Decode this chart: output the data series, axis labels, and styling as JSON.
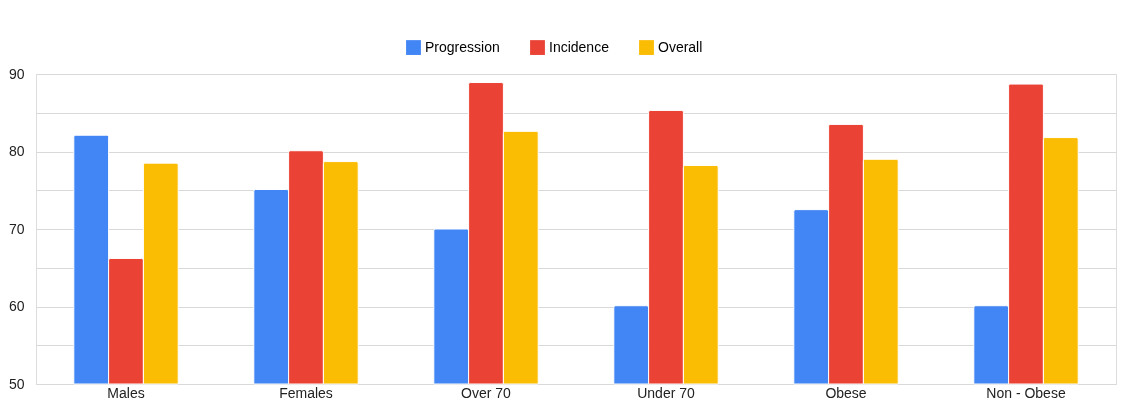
{
  "chart_data": {
    "type": "bar",
    "categories": [
      "Males",
      "Females",
      "Over 70",
      "Under 70",
      "Obese",
      "Non - Obese"
    ],
    "series": [
      {
        "name": "Progression",
        "color": "#4285f4",
        "values": [
          82.1,
          75.1,
          70.0,
          60.1,
          72.5,
          60.1
        ]
      },
      {
        "name": "Incidence",
        "color": "#ea4335",
        "values": [
          66.2,
          80.1,
          88.9,
          85.3,
          83.5,
          88.7
        ]
      },
      {
        "name": "Overall",
        "color": "#fbbc04",
        "values": [
          78.5,
          78.7,
          82.6,
          78.2,
          79.0,
          81.8
        ]
      }
    ],
    "ylim": [
      50,
      90
    ],
    "yticks": [
      50,
      {
        "value": 55,
        "label": null
      },
      60,
      {
        "value": 65,
        "label": null
      },
      70,
      {
        "value": 75,
        "label": null
      },
      80,
      {
        "value": 85,
        "label": null
      },
      90
    ],
    "grid": "y",
    "legend": "top"
  }
}
